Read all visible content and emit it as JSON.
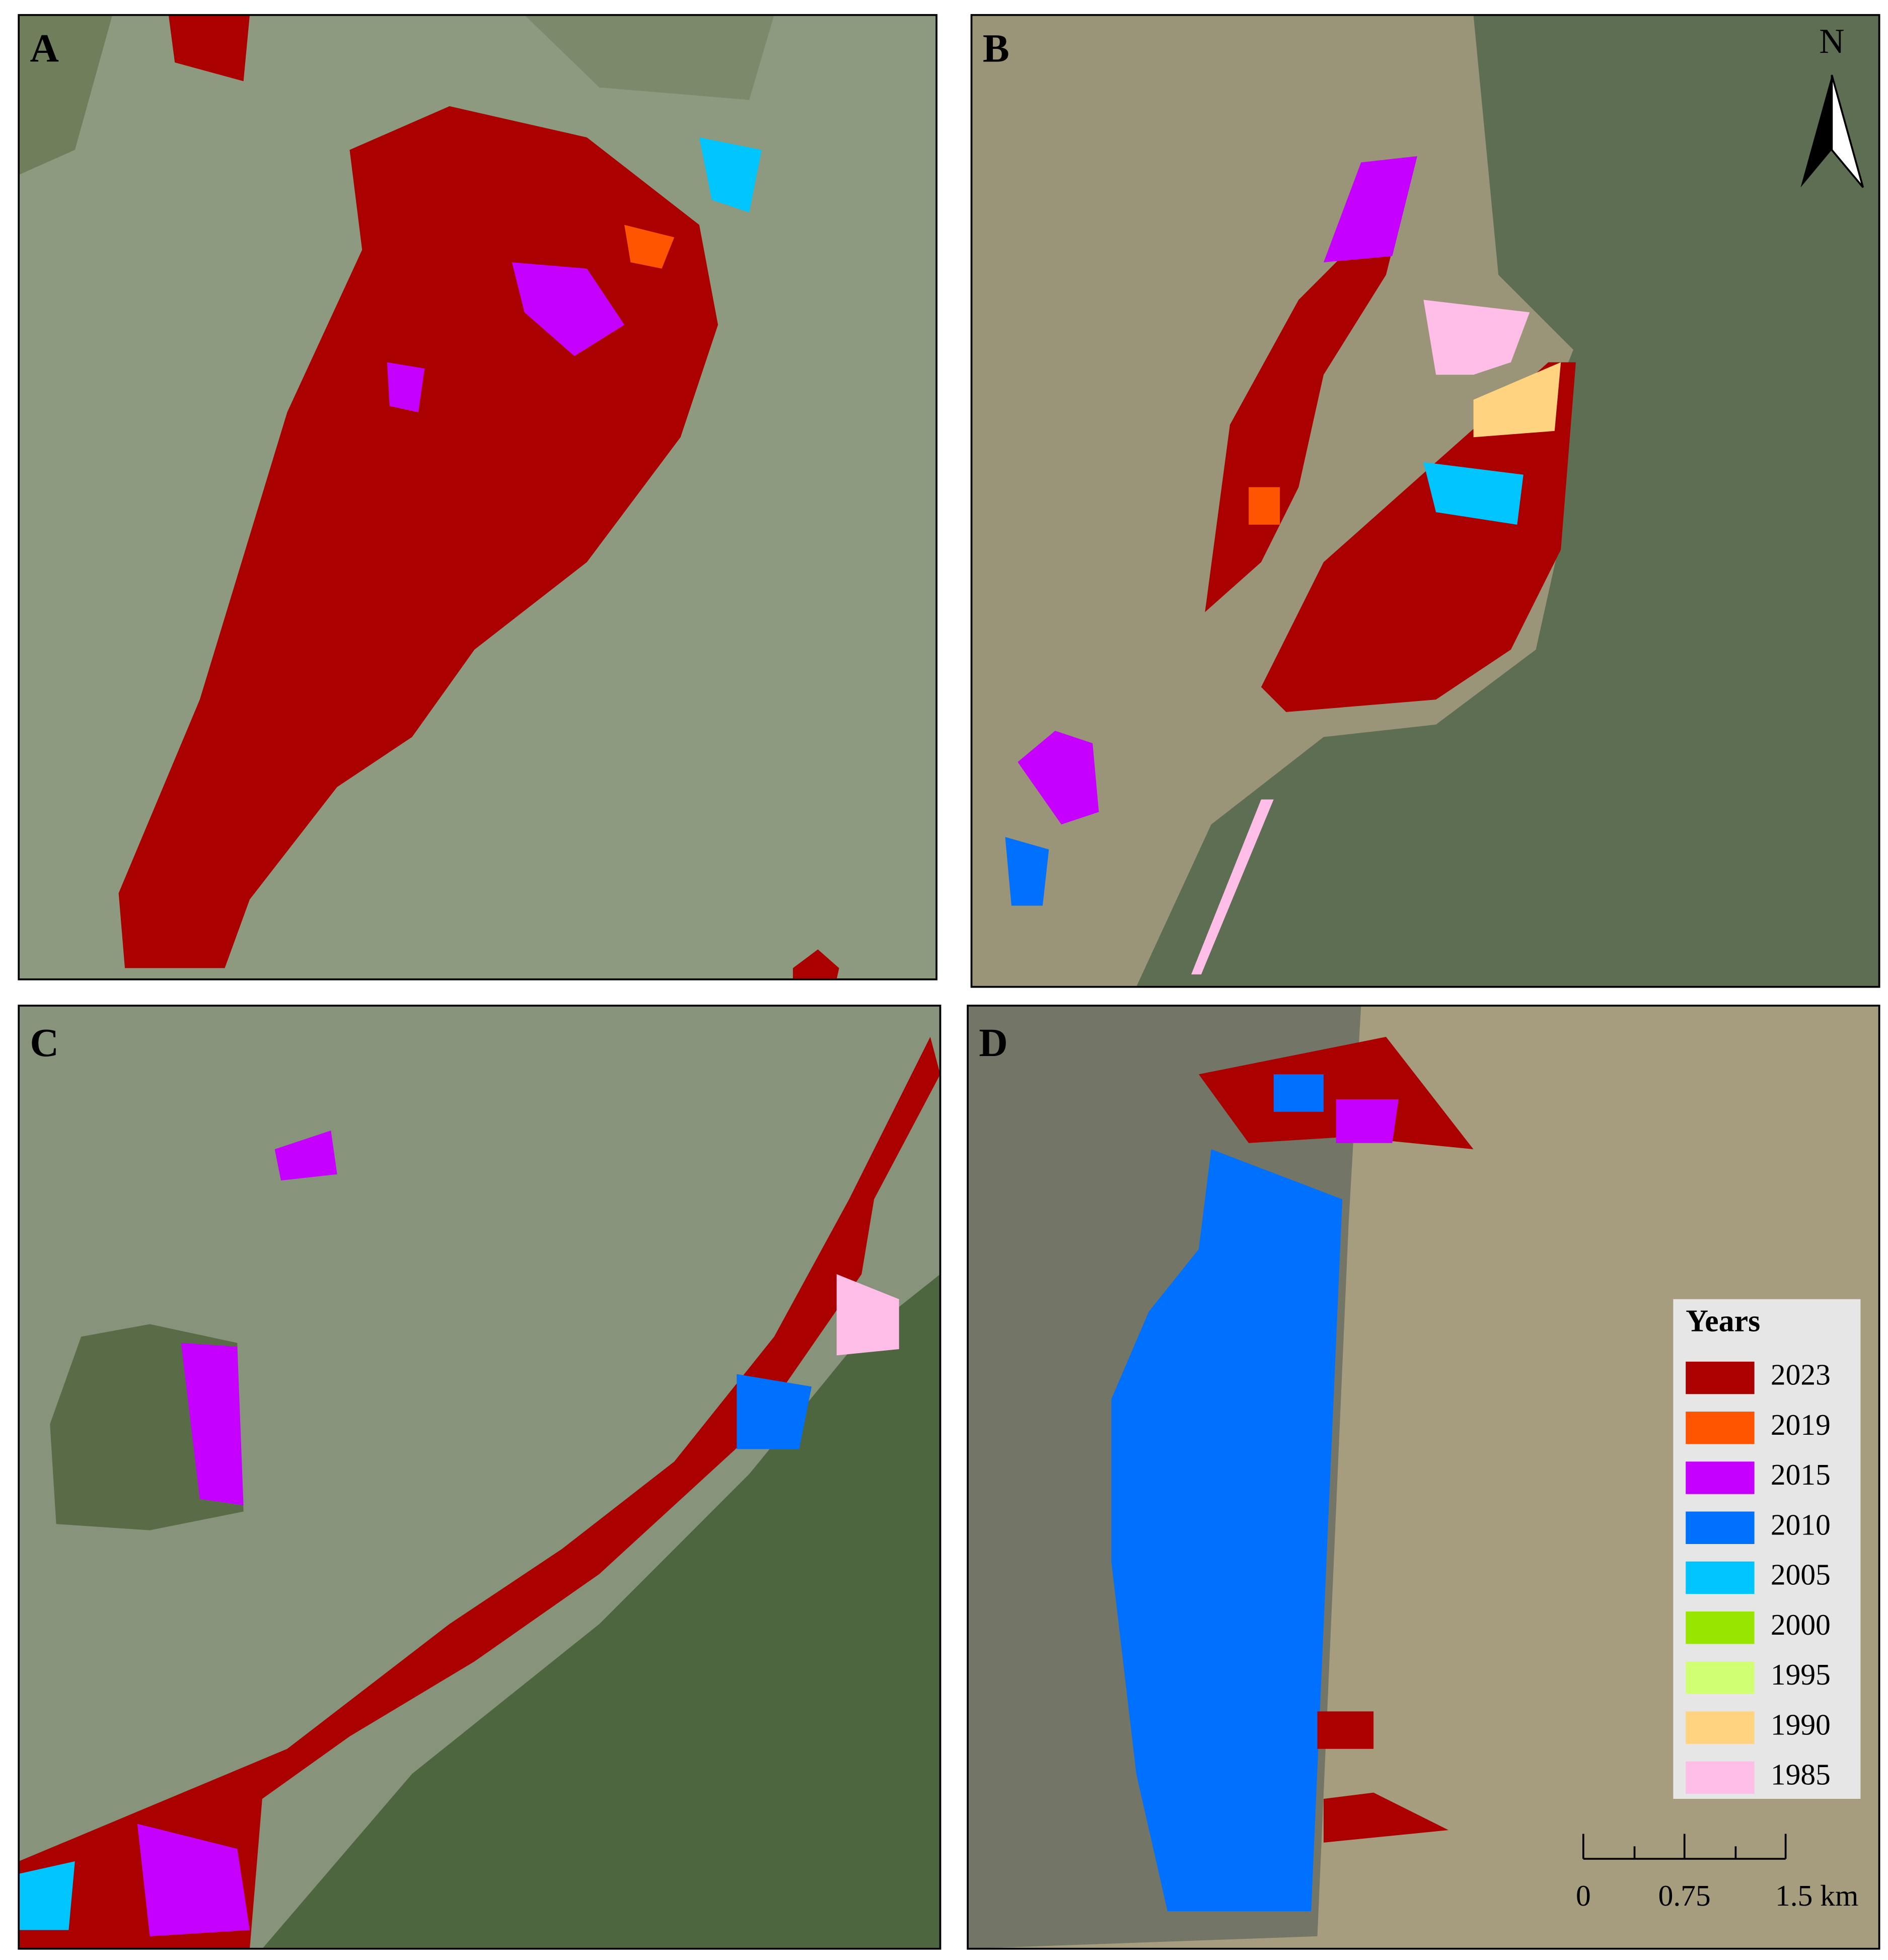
{
  "panels": [
    {
      "label": "A"
    },
    {
      "label": "B"
    },
    {
      "label": "C"
    },
    {
      "label": "D"
    }
  ],
  "north_arrow": {
    "label": "N"
  },
  "legend": {
    "title": "Years",
    "items": [
      {
        "label": "2023",
        "color": "#aa0000"
      },
      {
        "label": "2019",
        "color": "#ff5500"
      },
      {
        "label": "2015",
        "color": "#c500ff"
      },
      {
        "label": "2010",
        "color": "#0070ff"
      },
      {
        "label": "2005",
        "color": "#00c5ff"
      },
      {
        "label": "2000",
        "color": "#98e600"
      },
      {
        "label": "1995",
        "color": "#d1ff73"
      },
      {
        "label": "1990",
        "color": "#ffd37f"
      },
      {
        "label": "1985",
        "color": "#ffbee8"
      }
    ]
  },
  "scale_bar": {
    "labels": [
      "0",
      "0.75",
      "1.5 km"
    ]
  }
}
